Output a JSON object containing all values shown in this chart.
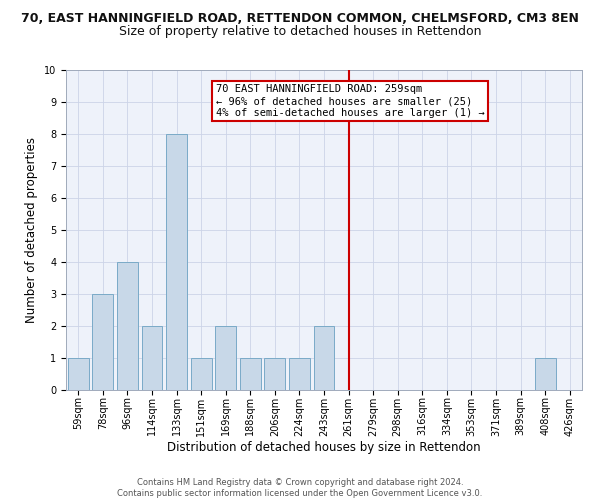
{
  "title_line1": "70, EAST HANNINGFIELD ROAD, RETTENDON COMMON, CHELMSFORD, CM3 8EN",
  "title_line2": "Size of property relative to detached houses in Rettendon",
  "xlabel": "Distribution of detached houses by size in Rettendon",
  "ylabel": "Number of detached properties",
  "categories": [
    "59sqm",
    "78sqm",
    "96sqm",
    "114sqm",
    "133sqm",
    "151sqm",
    "169sqm",
    "188sqm",
    "206sqm",
    "224sqm",
    "243sqm",
    "261sqm",
    "279sqm",
    "298sqm",
    "316sqm",
    "334sqm",
    "353sqm",
    "371sqm",
    "389sqm",
    "408sqm",
    "426sqm"
  ],
  "values": [
    1,
    3,
    4,
    2,
    8,
    1,
    2,
    1,
    1,
    1,
    2,
    0,
    0,
    0,
    0,
    0,
    0,
    0,
    0,
    1,
    0
  ],
  "bar_color": "#c8d8e8",
  "bar_edge_color": "#7aaac8",
  "vline_color": "#cc0000",
  "vline_index": 11,
  "annotation_text": "70 EAST HANNINGFIELD ROAD: 259sqm\n← 96% of detached houses are smaller (25)\n4% of semi-detached houses are larger (1) →",
  "annotation_box_color": "#cc0000",
  "ylim": [
    0,
    10
  ],
  "yticks": [
    0,
    1,
    2,
    3,
    4,
    5,
    6,
    7,
    8,
    9,
    10
  ],
  "grid_color": "#ccd4e8",
  "background_color": "#eef2fa",
  "footer_text": "Contains HM Land Registry data © Crown copyright and database right 2024.\nContains public sector information licensed under the Open Government Licence v3.0.",
  "title_fontsize": 9,
  "subtitle_fontsize": 9,
  "xlabel_fontsize": 8.5,
  "ylabel_fontsize": 8.5,
  "tick_fontsize": 7,
  "annotation_fontsize": 7.5,
  "footer_fontsize": 6
}
